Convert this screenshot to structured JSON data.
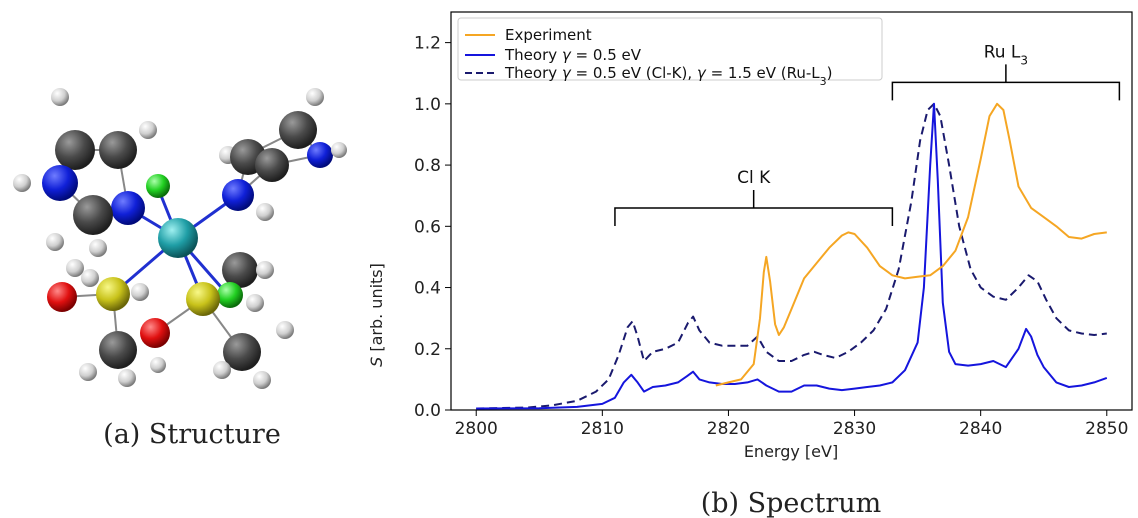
{
  "captions": {
    "structure": "(a) Structure",
    "spectrum": "(b) Spectrum"
  },
  "chart_data": {
    "type": "line",
    "xlabel": "Energy [eV]",
    "ylabel_italic": "S",
    "ylabel_rest": " [arb. units]",
    "xlim": [
      2798,
      2852
    ],
    "ylim": [
      0,
      1.3
    ],
    "xticks": [
      2800,
      2810,
      2820,
      2830,
      2840,
      2850
    ],
    "yticks": [
      "0.0",
      "0.2",
      "0.4",
      "0.6",
      "0.8",
      "1.0",
      "1.2"
    ],
    "grid": false,
    "legend_position": "top-left",
    "legend": {
      "experiment": "Experiment",
      "theory_pre": "Theory ",
      "gamma": "γ",
      "theory_mid": " = 0.5 eV",
      "theory2_mid1": " = 0.5 eV (Cl-K), ",
      "theory2_mid2": " = 1.5 eV (Ru-L",
      "theory2_sub": "3",
      "theory2_end": ")"
    },
    "annotations": {
      "clk": "Cl K",
      "clk_range": [
        2811,
        2833
      ],
      "clk_y": 0.66,
      "rul3_base": "Ru L",
      "rul3_sub": "3",
      "rul3_range": [
        2833,
        2851
      ],
      "rul3_y": 1.07
    },
    "series": [
      {
        "name": "Experiment",
        "color": "#f5a623",
        "style": "solid",
        "x": [
          2819.0,
          2820.0,
          2821.0,
          2822.0,
          2822.5,
          2822.8,
          2823.0,
          2823.3,
          2823.7,
          2824.0,
          2824.4,
          2825.0,
          2826.0,
          2827.0,
          2828.0,
          2829.0,
          2829.5,
          2830.0,
          2831.0,
          2832.0,
          2833.0,
          2834.0,
          2835.0,
          2836.0,
          2837.0,
          2838.0,
          2839.0,
          2840.0,
          2840.7,
          2841.3,
          2841.8,
          2842.3,
          2843.0,
          2844.0,
          2845.0,
          2846.0,
          2847.0,
          2848.0,
          2849.0,
          2850.0
        ],
        "y": [
          0.08,
          0.09,
          0.1,
          0.15,
          0.3,
          0.45,
          0.5,
          0.42,
          0.28,
          0.245,
          0.27,
          0.33,
          0.43,
          0.48,
          0.53,
          0.57,
          0.58,
          0.575,
          0.53,
          0.47,
          0.44,
          0.43,
          0.435,
          0.44,
          0.47,
          0.52,
          0.63,
          0.82,
          0.96,
          1.0,
          0.98,
          0.88,
          0.73,
          0.66,
          0.63,
          0.6,
          0.565,
          0.56,
          0.575,
          0.58
        ]
      },
      {
        "name": "Theory γ = 0.5 eV",
        "color": "#1515dd",
        "style": "solid",
        "x": [
          2800,
          2805,
          2808,
          2810,
          2811,
          2811.7,
          2812.3,
          2812.8,
          2813.3,
          2814,
          2815,
          2816,
          2816.7,
          2817.2,
          2817.7,
          2818.5,
          2819.5,
          2820.5,
          2821.5,
          2822.3,
          2823,
          2824,
          2825,
          2826,
          2827,
          2828,
          2829,
          2830,
          2831,
          2832,
          2833,
          2834,
          2835,
          2835.5,
          2836,
          2836.3,
          2836.6,
          2837,
          2837.5,
          2838,
          2839,
          2840,
          2841,
          2842,
          2843,
          2843.6,
          2844,
          2844.5,
          2845,
          2846,
          2847,
          2848,
          2849,
          2850
        ],
        "y": [
          0.005,
          0.006,
          0.01,
          0.02,
          0.04,
          0.09,
          0.115,
          0.09,
          0.06,
          0.075,
          0.08,
          0.09,
          0.11,
          0.125,
          0.1,
          0.09,
          0.085,
          0.085,
          0.09,
          0.1,
          0.08,
          0.06,
          0.06,
          0.08,
          0.08,
          0.07,
          0.065,
          0.07,
          0.075,
          0.08,
          0.09,
          0.13,
          0.22,
          0.4,
          0.8,
          1.0,
          0.75,
          0.35,
          0.19,
          0.15,
          0.145,
          0.15,
          0.16,
          0.14,
          0.2,
          0.265,
          0.24,
          0.18,
          0.14,
          0.09,
          0.075,
          0.08,
          0.09,
          0.105
        ]
      },
      {
        "name": "Theory γ = 0.5 eV (Cl-K), γ = 1.5 eV (Ru-L3)",
        "color": "#1a1a6e",
        "style": "dashed",
        "x": [
          2800,
          2804,
          2806,
          2808,
          2809.5,
          2810.5,
          2811.3,
          2812,
          2812.4,
          2812.8,
          2813.3,
          2814,
          2815,
          2816,
          2816.8,
          2817.2,
          2817.7,
          2818.5,
          2819.5,
          2820.5,
          2821.5,
          2822.3,
          2823,
          2824,
          2825,
          2826,
          2826.8,
          2827.5,
          2828.5,
          2829.5,
          2830.5,
          2831.5,
          2832.5,
          2833.5,
          2834.5,
          2835.2,
          2835.8,
          2836.3,
          2836.8,
          2837.5,
          2838.3,
          2839.2,
          2840,
          2841,
          2842,
          2843,
          2843.8,
          2844.5,
          2845.2,
          2846,
          2847,
          2848,
          2849,
          2850
        ],
        "y": [
          0.005,
          0.008,
          0.015,
          0.03,
          0.06,
          0.1,
          0.18,
          0.27,
          0.29,
          0.24,
          0.16,
          0.19,
          0.2,
          0.22,
          0.285,
          0.305,
          0.26,
          0.22,
          0.21,
          0.21,
          0.21,
          0.24,
          0.19,
          0.16,
          0.16,
          0.18,
          0.19,
          0.18,
          0.17,
          0.19,
          0.22,
          0.26,
          0.33,
          0.46,
          0.68,
          0.88,
          0.98,
          1.0,
          0.96,
          0.8,
          0.6,
          0.46,
          0.4,
          0.37,
          0.36,
          0.4,
          0.44,
          0.42,
          0.36,
          0.3,
          0.26,
          0.25,
          0.245,
          0.25
        ]
      }
    ]
  }
}
